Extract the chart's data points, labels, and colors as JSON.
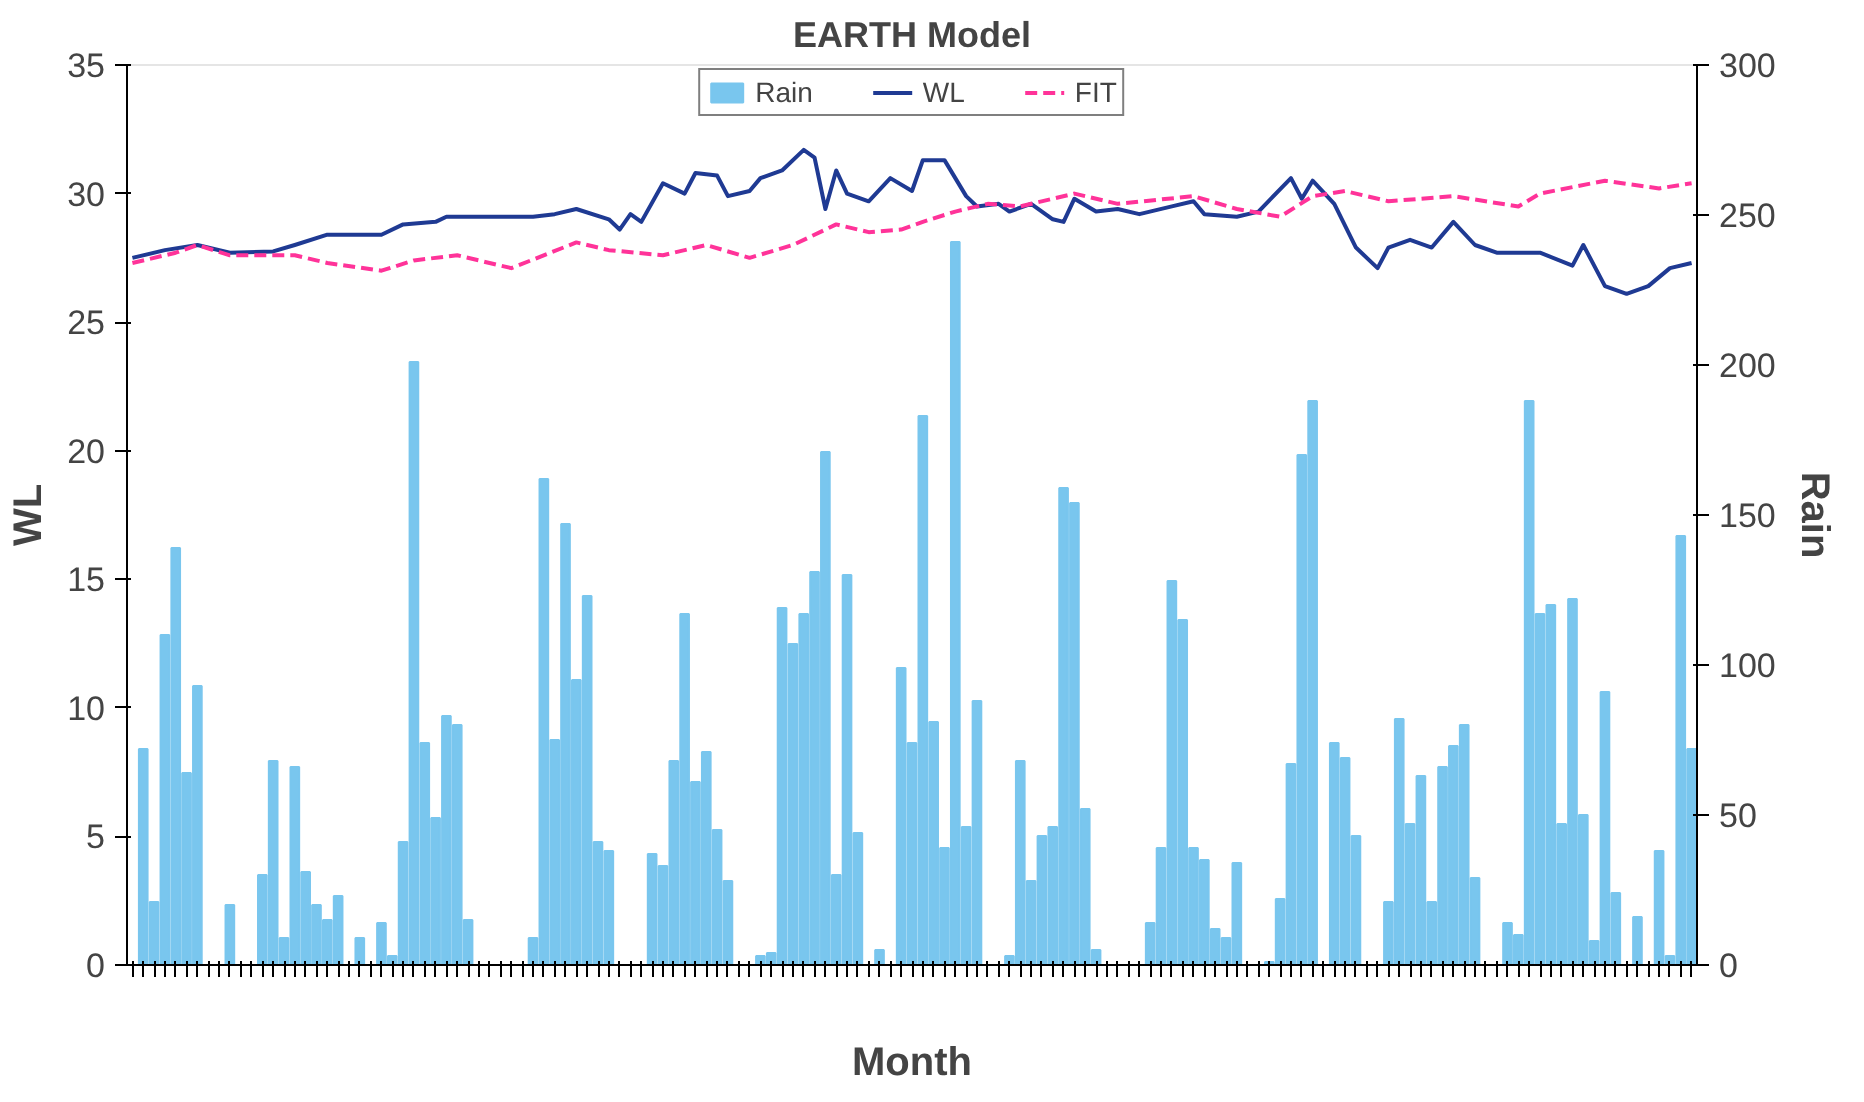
{
  "chart_data": {
    "type": "bar",
    "title": "EARTH Model",
    "xlabel": "Month",
    "ylabel": "WL",
    "y2label": "Rain",
    "categories": [
      null,
      null,
      null,
      null,
      null,
      null,
      null,
      null,
      null,
      null,
      null,
      null,
      null,
      null,
      null,
      null,
      null,
      null,
      null,
      null,
      null,
      null,
      null,
      null,
      null,
      null,
      null,
      null,
      null,
      null,
      null,
      null,
      null,
      null,
      null,
      null,
      null,
      null,
      null,
      null,
      null,
      null,
      null,
      null,
      null,
      null,
      null,
      null,
      null,
      null,
      null,
      null,
      null,
      null,
      null,
      null,
      null,
      null,
      null,
      null,
      null,
      null,
      null,
      null,
      null,
      null,
      null,
      null,
      null,
      null,
      null,
      null,
      null,
      null,
      null,
      null,
      null,
      null,
      null,
      null,
      null,
      null,
      null,
      null,
      null,
      null,
      null,
      null,
      null,
      null,
      null,
      null,
      null,
      null,
      null,
      null,
      null,
      null,
      null,
      null,
      null,
      null,
      null,
      null,
      null,
      null,
      null,
      null,
      null,
      null,
      null,
      null,
      null,
      null,
      null,
      null,
      null,
      null,
      null,
      null,
      null,
      null,
      null,
      null,
      null,
      null,
      null,
      null,
      null,
      null,
      null,
      null,
      null,
      null,
      null,
      null,
      null,
      null,
      null,
      null,
      null,
      null,
      null,
      null,
      null
    ],
    "series": [
      {
        "name": "Rain",
        "axis": "y2",
        "color": "#79c6ee",
        "values": [
          0,
          72,
          21,
          110,
          139,
          64,
          93,
          0,
          0,
          20,
          0,
          0,
          30,
          68,
          9,
          66,
          31,
          20,
          15,
          23,
          0,
          9,
          0,
          14,
          3,
          41,
          201,
          74,
          49,
          83,
          80,
          15,
          0,
          0,
          0,
          0,
          0,
          9,
          162,
          75,
          147,
          95,
          123,
          41,
          38,
          0,
          0,
          0,
          37,
          33,
          68,
          117,
          61,
          71,
          45,
          28,
          0,
          0,
          3,
          4,
          119,
          107,
          117,
          131,
          171,
          30,
          130,
          44,
          0,
          5,
          0,
          99,
          74,
          183,
          81,
          39,
          241,
          46,
          88,
          0,
          0,
          3,
          68,
          28,
          43,
          46,
          159,
          154,
          52,
          5,
          0,
          0,
          0,
          0,
          14,
          39,
          128,
          115,
          39,
          35,
          12,
          9,
          34,
          0,
          0,
          1,
          22,
          67,
          170,
          188,
          0,
          74,
          69,
          43,
          0,
          0,
          21,
          82,
          47,
          63,
          21,
          66,
          73,
          80,
          29,
          0,
          0,
          14,
          10,
          188,
          117,
          120,
          47,
          122,
          50,
          8,
          91,
          24,
          0,
          16,
          0,
          38,
          3,
          143,
          72
        ]
      },
      {
        "name": "WL",
        "type": "line",
        "color": "#1f3a93",
        "line_style": "solid",
        "values": [
          27.5,
          null,
          null,
          27.8,
          null,
          null,
          28.0,
          null,
          null,
          27.7,
          null,
          null,
          null,
          27.75,
          null,
          28.0,
          null,
          null,
          28.4,
          null,
          null,
          null,
          null,
          28.4,
          null,
          28.8,
          null,
          null,
          28.9,
          29.1,
          null,
          null,
          null,
          null,
          null,
          null,
          null,
          29.1,
          null,
          29.2,
          null,
          29.4,
          null,
          null,
          29.0,
          28.6,
          29.2,
          28.9,
          null,
          30.4,
          null,
          30.0,
          30.8,
          null,
          30.7,
          29.9,
          null,
          30.1,
          30.6,
          null,
          30.9,
          null,
          31.7,
          31.4,
          29.4,
          30.9,
          30.0,
          null,
          29.7,
          null,
          30.6,
          null,
          30.1,
          31.3,
          null,
          31.3,
          null,
          29.9,
          29.5,
          null,
          29.6,
          29.3,
          null,
          29.6,
          null,
          29.0,
          28.9,
          29.8,
          null,
          29.3,
          null,
          29.4,
          null,
          29.2,
          null,
          null,
          29.5,
          null,
          29.7,
          29.2,
          null,
          null,
          29.1,
          null,
          29.3,
          null,
          null,
          30.6,
          29.8,
          30.5,
          null,
          29.6,
          null,
          27.9,
          null,
          27.1,
          27.9,
          null,
          28.2,
          null,
          27.9,
          null,
          28.9,
          null,
          28.0,
          null,
          27.7,
          null,
          null,
          null,
          27.7,
          null,
          null,
          27.2,
          28.0,
          null,
          26.4,
          null,
          26.1,
          null,
          26.4,
          null,
          27.1,
          null,
          27.3
        ]
      },
      {
        "name": "FIT",
        "type": "line",
        "color": "#ff3399",
        "line_style": "dashed",
        "values": [
          27.3,
          null,
          null,
          null,
          27.7,
          null,
          28.0,
          null,
          null,
          27.6,
          null,
          null,
          null,
          null,
          null,
          27.6,
          null,
          null,
          27.3,
          null,
          null,
          null,
          null,
          27.0,
          null,
          null,
          27.4,
          null,
          null,
          null,
          27.6,
          null,
          null,
          null,
          null,
          27.1,
          null,
          null,
          null,
          null,
          null,
          28.1,
          null,
          null,
          27.8,
          null,
          null,
          null,
          null,
          27.6,
          null,
          null,
          null,
          28.0,
          null,
          null,
          null,
          27.5,
          null,
          null,
          null,
          28.0,
          null,
          null,
          null,
          28.8,
          null,
          null,
          28.5,
          null,
          null,
          28.6,
          null,
          28.9,
          null,
          null,
          29.3,
          null,
          null,
          29.6,
          null,
          null,
          29.5,
          null,
          null,
          null,
          null,
          30.0,
          null,
          null,
          null,
          29.6,
          null,
          null,
          null,
          null,
          null,
          null,
          29.9,
          null,
          null,
          null,
          29.4,
          null,
          null,
          null,
          29.1,
          null,
          null,
          29.9,
          null,
          null,
          30.1,
          null,
          null,
          null,
          29.7,
          null,
          null,
          null,
          null,
          null,
          29.9,
          null,
          null,
          null,
          null,
          null,
          29.5,
          null,
          30.0,
          null,
          null,
          null,
          null,
          null,
          30.5,
          null,
          null,
          null,
          null,
          30.2,
          null,
          null,
          30.4
        ]
      }
    ],
    "ylim": [
      0,
      35
    ],
    "yticks": [
      0,
      5,
      10,
      15,
      20,
      25,
      30,
      35
    ],
    "y2lim": [
      0,
      300
    ],
    "y2ticks": [
      0,
      50,
      100,
      150,
      200,
      250,
      300
    ],
    "legend": "top",
    "grid": false
  }
}
